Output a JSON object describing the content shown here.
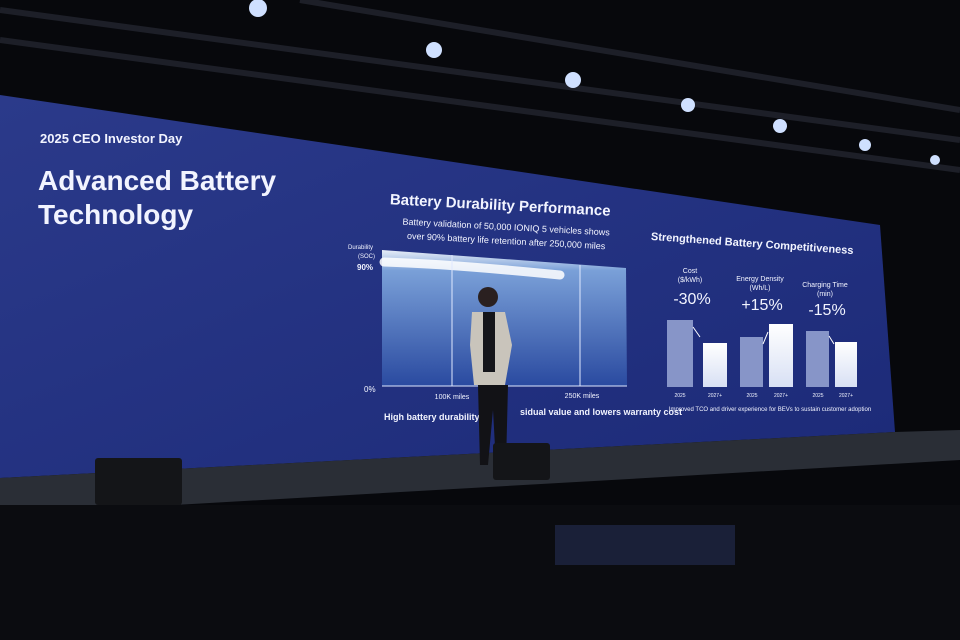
{
  "slide": {
    "event": "2025 CEO Investor Day",
    "title": [
      "Advanced Battery",
      "Technology"
    ],
    "durability": {
      "title": "Battery Durability Performance",
      "subtitle": [
        "Battery validation of 50,000 IONIQ 5 vehicles shows",
        "over 90% battery life retention after 250,000 miles"
      ],
      "y_label": [
        "Durability",
        "(SOC)"
      ],
      "y_ticks": [
        "90%",
        "0%"
      ],
      "x_ticks": [
        "100K miles",
        "250K miles"
      ],
      "caption": [
        "High battery durability su",
        "sidual value and lowers warranty cost"
      ]
    },
    "competitiveness": {
      "title": "Strengthened Battery Competitiveness",
      "metrics": [
        {
          "label": [
            "Cost",
            "($/kWh)"
          ],
          "change": "-30%",
          "years": [
            "2025",
            "2027+"
          ]
        },
        {
          "label": [
            "Energy Density",
            "(Wh/L)"
          ],
          "change": "+15%",
          "years": [
            "2025",
            "2027+"
          ]
        },
        {
          "label": [
            "Charging Time",
            "(min)"
          ],
          "change": "-15%",
          "years": [
            "2025",
            "2027+"
          ]
        }
      ],
      "caption": "Improved TCO and driver experience for BEVs to sustain customer adoption"
    }
  }
}
